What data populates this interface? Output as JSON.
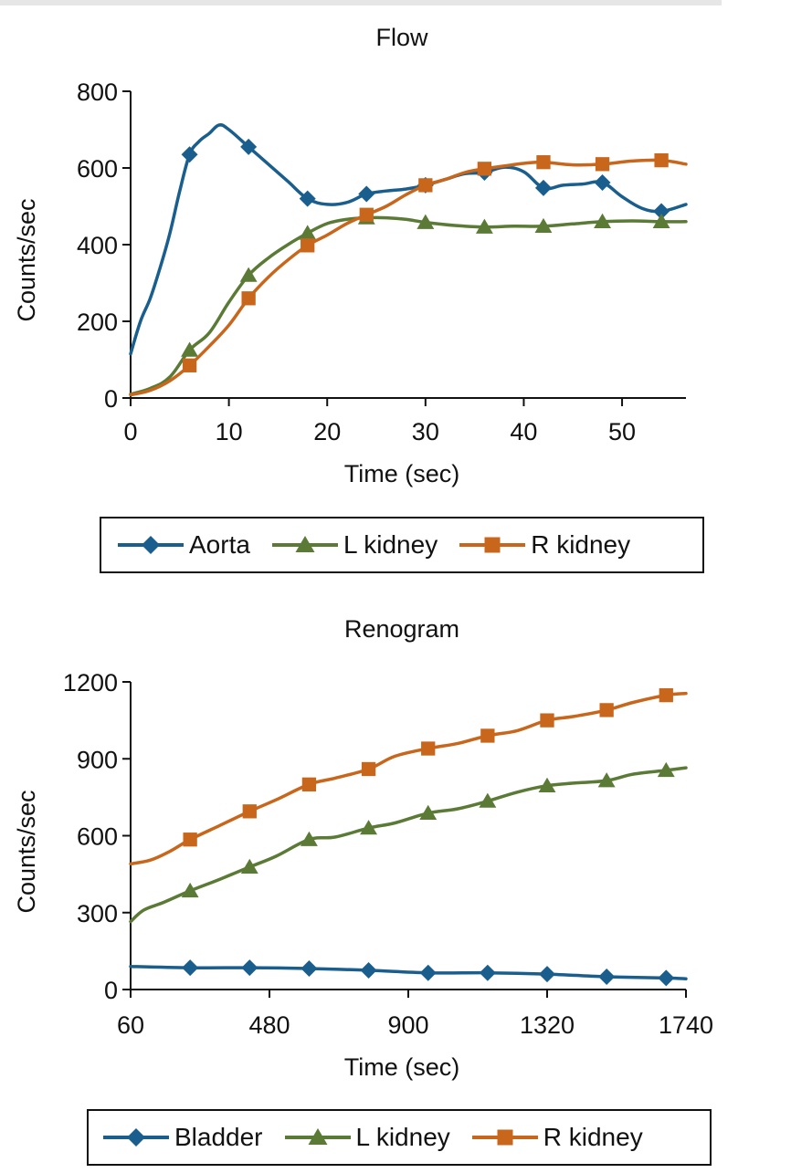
{
  "chart_data": [
    {
      "type": "line",
      "title": "Flow",
      "xlabel": "Time (sec)",
      "ylabel": "Counts/sec",
      "xlim": [
        0,
        56.5
      ],
      "ylim": [
        0,
        800
      ],
      "xticks": [
        0,
        10,
        20,
        30,
        40,
        50
      ],
      "yticks": [
        0,
        200,
        400,
        600,
        800
      ],
      "legend_position": "bottom",
      "series": [
        {
          "name": "Aorta",
          "color": "#1a5e8e",
          "marker": "diamond",
          "x": [
            0,
            1,
            2,
            3,
            4,
            5,
            6,
            7,
            8,
            9,
            10,
            12,
            14,
            16,
            18,
            20,
            22,
            24,
            26,
            28,
            30,
            32,
            34,
            36,
            38,
            40,
            42,
            44,
            46,
            48,
            50,
            52,
            54,
            56.5
          ],
          "y": [
            115,
            200,
            260,
            340,
            430,
            540,
            635,
            670,
            690,
            712,
            700,
            655,
            610,
            565,
            520,
            505,
            510,
            532,
            540,
            545,
            555,
            570,
            585,
            588,
            602,
            590,
            548,
            555,
            558,
            562,
            525,
            495,
            487,
            505
          ],
          "marker_x": [
            6,
            12,
            18,
            24,
            30,
            36,
            42,
            48,
            54
          ]
        },
        {
          "name": "L kidney",
          "color": "#5a7a35",
          "marker": "triangle",
          "x": [
            0,
            2,
            4,
            6,
            8,
            10,
            12,
            14,
            16,
            18,
            20,
            22,
            24,
            26,
            28,
            30,
            33,
            36,
            39,
            42,
            45,
            48,
            51,
            54,
            56.5
          ],
          "y": [
            10,
            25,
            55,
            125,
            170,
            250,
            320,
            365,
            400,
            430,
            455,
            466,
            470,
            470,
            466,
            458,
            450,
            446,
            448,
            448,
            454,
            460,
            462,
            460,
            460
          ],
          "marker_x": [
            6,
            12,
            18,
            24,
            30,
            36,
            42,
            48,
            54
          ]
        },
        {
          "name": "R kidney",
          "color": "#c8661c",
          "marker": "square",
          "x": [
            0,
            2,
            4,
            6,
            8,
            10,
            12,
            14,
            16,
            18,
            20,
            22,
            24,
            26,
            28,
            30,
            32,
            34,
            36,
            38,
            40,
            42,
            45,
            48,
            51,
            54,
            56.5
          ],
          "y": [
            8,
            20,
            45,
            85,
            135,
            190,
            260,
            315,
            360,
            398,
            425,
            455,
            478,
            500,
            530,
            555,
            570,
            588,
            598,
            605,
            612,
            615,
            608,
            610,
            618,
            620,
            610
          ],
          "marker_x": [
            6,
            12,
            18,
            24,
            30,
            36,
            42,
            48,
            54
          ]
        }
      ]
    },
    {
      "type": "line",
      "title": "Renogram",
      "xlabel": "Time (sec)",
      "ylabel": "Counts/sec",
      "xlim": [
        60,
        1740
      ],
      "ylim": [
        0,
        1200
      ],
      "xticks": [
        60,
        480,
        900,
        1320,
        1740
      ],
      "yticks": [
        0,
        300,
        600,
        900,
        1200
      ],
      "legend_position": "bottom",
      "series": [
        {
          "name": "Bladder",
          "color": "#1a5e8e",
          "marker": "diamond",
          "x": [
            60,
            240,
            420,
            600,
            780,
            960,
            1140,
            1320,
            1500,
            1680,
            1740
          ],
          "y": [
            90,
            85,
            85,
            82,
            75,
            65,
            65,
            60,
            50,
            45,
            42
          ],
          "marker_x": [
            240,
            420,
            600,
            780,
            960,
            1140,
            1320,
            1500,
            1680
          ]
        },
        {
          "name": "L kidney",
          "color": "#5a7a35",
          "marker": "triangle",
          "x": [
            60,
            100,
            160,
            240,
            330,
            420,
            500,
            600,
            680,
            780,
            860,
            960,
            1050,
            1140,
            1230,
            1320,
            1400,
            1500,
            1580,
            1680,
            1740
          ],
          "y": [
            265,
            310,
            340,
            385,
            430,
            478,
            520,
            585,
            595,
            630,
            650,
            688,
            705,
            735,
            770,
            795,
            805,
            815,
            840,
            855,
            865
          ],
          "marker_x": [
            240,
            420,
            600,
            780,
            960,
            1140,
            1320,
            1500,
            1680
          ]
        },
        {
          "name": "R kidney",
          "color": "#c8661c",
          "marker": "square",
          "x": [
            60,
            120,
            180,
            240,
            330,
            420,
            500,
            600,
            680,
            780,
            860,
            960,
            1050,
            1140,
            1230,
            1320,
            1400,
            1500,
            1580,
            1680,
            1740
          ],
          "y": [
            490,
            505,
            540,
            585,
            640,
            695,
            740,
            800,
            825,
            860,
            910,
            940,
            960,
            990,
            1010,
            1050,
            1065,
            1090,
            1120,
            1148,
            1155
          ],
          "marker_x": [
            240,
            420,
            600,
            780,
            960,
            1140,
            1320,
            1500,
            1680
          ]
        }
      ]
    }
  ]
}
